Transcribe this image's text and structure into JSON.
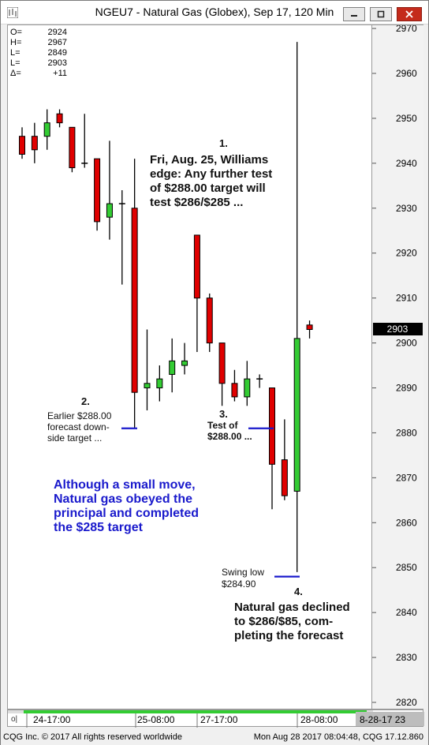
{
  "window": {
    "title": "NGEU7 - Natural Gas (Globex), Sep 17, 120 Min"
  },
  "ohlc_box": {
    "rows": [
      {
        "label": "O=",
        "value": "2924"
      },
      {
        "label": "H=",
        "value": "2967"
      },
      {
        "label": "L=",
        "value": "2849"
      },
      {
        "label": "L=",
        "value": "2903"
      },
      {
        "label": "Δ=",
        "value": "+11"
      }
    ]
  },
  "annotations": {
    "a1_num": "1.",
    "a1_lines": [
      "Fri, Aug. 25, Williams",
      "edge: Any further test",
      "of $288.00 target will",
      "test $286/$285 ..."
    ],
    "a2_num": "2.",
    "a2_lines": [
      "Earlier $288.00",
      "forecast down-",
      "side target ..."
    ],
    "a3_num": "3.",
    "a3_lines": [
      "Test of",
      "$288.00 ..."
    ],
    "a4_num": "4.",
    "a4_lines": [
      "Natural gas declined",
      "to $286/$85, com-",
      "pleting the forecast"
    ],
    "swing_lines": [
      "Swing low",
      "$284.90"
    ],
    "blue_lines": [
      "Although a small move,",
      "Natural gas obeyed the",
      "principal and completed",
      "the $285 target"
    ]
  },
  "chart_data": {
    "type": "candlestick",
    "y_ticks": [
      2820,
      2830,
      2840,
      2850,
      2860,
      2870,
      2880,
      2890,
      2900,
      2910,
      2920,
      2930,
      2940,
      2950,
      2960,
      2970
    ],
    "ylim": [
      2817,
      2970
    ],
    "last_price": "2903",
    "x_labels": [
      "24-17:00",
      "25-08:00",
      "27-17:00",
      "28-08:00"
    ],
    "x_label_right": "8-28-17  23",
    "targets": [
      2881,
      2881,
      2848
    ],
    "candles": [
      {
        "o": 2946,
        "h": 2948,
        "l": 2941,
        "c": 2942
      },
      {
        "o": 2946,
        "h": 2949,
        "l": 2940,
        "c": 2943
      },
      {
        "o": 2946,
        "h": 2952,
        "l": 2943,
        "c": 2949
      },
      {
        "o": 2951,
        "h": 2952,
        "l": 2948,
        "c": 2949
      },
      {
        "o": 2948,
        "h": 2948,
        "l": 2938,
        "c": 2939
      },
      {
        "o": 2940,
        "h": 2951,
        "l": 2939,
        "c": 2940
      },
      {
        "o": 2941,
        "h": 2941,
        "l": 2925,
        "c": 2927
      },
      {
        "o": 2928,
        "h": 2945,
        "l": 2923,
        "c": 2931
      },
      {
        "o": 2931,
        "h": 2934,
        "l": 2913,
        "c": 2931
      },
      {
        "o": 2930,
        "h": 2941,
        "l": 2881,
        "c": 2889
      },
      {
        "o": 2890,
        "h": 2903,
        "l": 2885,
        "c": 2891
      },
      {
        "o": 2890,
        "h": 2895,
        "l": 2887,
        "c": 2892
      },
      {
        "o": 2893,
        "h": 2901,
        "l": 2889,
        "c": 2896
      },
      {
        "o": 2895,
        "h": 2900,
        "l": 2893,
        "c": 2896
      },
      {
        "o": 2924,
        "h": 2924,
        "l": 2898,
        "c": 2910
      },
      {
        "o": 2910,
        "h": 2911,
        "l": 2898,
        "c": 2900
      },
      {
        "o": 2900,
        "h": 2900,
        "l": 2886,
        "c": 2891
      },
      {
        "o": 2891,
        "h": 2894,
        "l": 2887,
        "c": 2888
      },
      {
        "o": 2888,
        "h": 2896,
        "l": 2886,
        "c": 2892
      },
      {
        "o": 2892,
        "h": 2893,
        "l": 2890,
        "c": 2892
      },
      {
        "o": 2890,
        "h": 2890,
        "l": 2863,
        "c": 2873
      },
      {
        "o": 2874,
        "h": 2883,
        "l": 2865,
        "c": 2866
      },
      {
        "o": 2867,
        "h": 2967,
        "l": 2849,
        "c": 2901
      },
      {
        "o": 2904,
        "h": 2905,
        "l": 2901,
        "c": 2903
      }
    ]
  },
  "statusbar": {
    "left": "CQG Inc. © 2017 All rights reserved worldwide",
    "right": "Mon Aug 28 2017 08:04:48, CQG 17.12.860"
  },
  "colors": {
    "up": "#33cc33",
    "down": "#e00000",
    "annotation_blue": "#1a1acc",
    "target_line": "#1a1acc"
  }
}
